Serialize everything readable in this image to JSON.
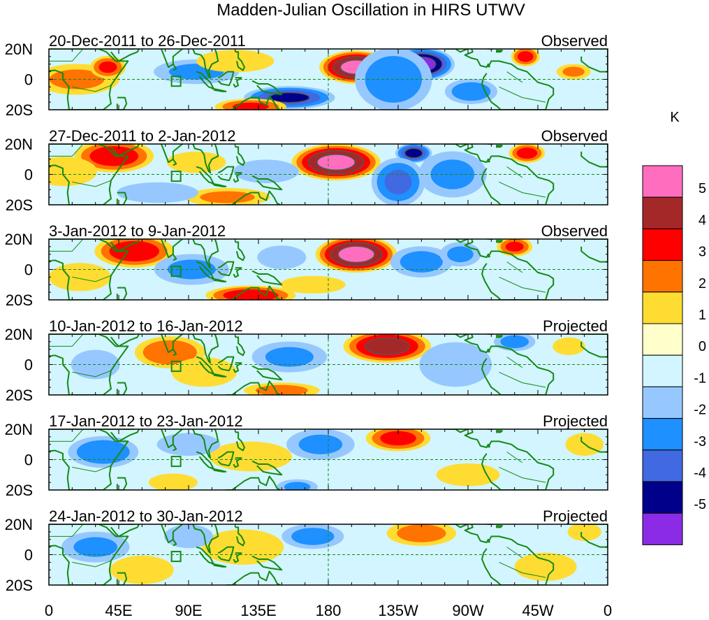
{
  "chart_data": {
    "type": "heatmap",
    "title": "Madden-Julian Oscillation in HIRS UTWV",
    "units": "K",
    "x_tick_labels": [
      "0",
      "45E",
      "90E",
      "135E",
      "180",
      "135W",
      "90W",
      "45W",
      "0"
    ],
    "x_ticks_deg": [
      0,
      45,
      90,
      135,
      180,
      225,
      270,
      315,
      360
    ],
    "y_tick_labels": [
      "20N",
      "0",
      "20S"
    ],
    "y_ticks_deg": [
      20,
      0,
      -20
    ],
    "xlim": [
      0,
      360
    ],
    "ylim": [
      -20,
      20
    ],
    "colorbar": {
      "levels": [
        "5",
        "4",
        "3",
        "2",
        "1",
        "0",
        "-1",
        "-2",
        "-3",
        "-4",
        "-5"
      ],
      "colors": [
        "#8B2BE6",
        "#00008B",
        "#4169E1",
        "#1E90FF",
        "#96C8FF",
        "#D2F5FF",
        "#FFFFCC",
        "#FFDC32",
        "#FF7300",
        "#FF0000",
        "#A52828",
        "#FF6EBE"
      ]
    },
    "panels": [
      {
        "period": "20-Dec-2011 to 26-Dec-2011",
        "status": "Observed",
        "features": [
          {
            "lon": 198,
            "lat": 8,
            "anomaly": 5.2,
            "wlon": 20,
            "wlat": 10
          },
          {
            "lon": 240,
            "lat": 10,
            "anomaly": -5.2,
            "wlon": 18,
            "wlat": 10
          },
          {
            "lon": 222,
            "lat": 0,
            "anomaly": -2.5,
            "wlon": 22,
            "wlat": 20
          },
          {
            "lon": 155,
            "lat": -12,
            "anomaly": -4.0,
            "wlon": 25,
            "wlat": 7
          },
          {
            "lon": 18,
            "lat": 0,
            "anomaly": 2.0,
            "wlon": 25,
            "wlat": 10
          },
          {
            "lon": 38,
            "lat": 8,
            "anomaly": 3.0,
            "wlon": 10,
            "wlat": 7
          },
          {
            "lon": 130,
            "lat": -18,
            "anomaly": 3.0,
            "wlon": 20,
            "wlat": 5
          },
          {
            "lon": 307,
            "lat": 15,
            "anomaly": 3.2,
            "wlon": 8,
            "wlat": 6
          },
          {
            "lon": 95,
            "lat": 5,
            "anomaly": -2.0,
            "wlon": 25,
            "wlat": 8
          },
          {
            "lon": 338,
            "lat": 5,
            "anomaly": 2.0,
            "wlon": 10,
            "wlat": 5
          },
          {
            "lon": 272,
            "lat": -8,
            "anomaly": -2.5,
            "wlon": 15,
            "wlat": 8
          },
          {
            "lon": 120,
            "lat": 12,
            "anomaly": 1.2,
            "wlon": 25,
            "wlat": 8
          }
        ]
      },
      {
        "period": "27-Dec-2011 to 2-Jan-2012",
        "status": "Observed",
        "features": [
          {
            "lon": 185,
            "lat": 8,
            "anomaly": 5.2,
            "wlon": 24,
            "wlat": 11
          },
          {
            "lon": 42,
            "lat": 12,
            "anomaly": 3.5,
            "wlon": 22,
            "wlat": 10
          },
          {
            "lon": 10,
            "lat": 2,
            "anomaly": 1.5,
            "wlon": 20,
            "wlat": 10
          },
          {
            "lon": 235,
            "lat": 14,
            "anomaly": -4.2,
            "wlon": 10,
            "wlat": 6
          },
          {
            "lon": 225,
            "lat": -5,
            "anomaly": -3.0,
            "wlon": 15,
            "wlat": 15
          },
          {
            "lon": 260,
            "lat": 0,
            "anomaly": -2.0,
            "wlon": 20,
            "wlat": 15
          },
          {
            "lon": 308,
            "lat": 14,
            "anomaly": 3.3,
            "wlon": 10,
            "wlat": 6
          },
          {
            "lon": 115,
            "lat": -15,
            "anomaly": 2.0,
            "wlon": 25,
            "wlat": 6
          },
          {
            "lon": 70,
            "lat": -12,
            "anomaly": -1.5,
            "wlon": 25,
            "wlat": 7
          },
          {
            "lon": 140,
            "lat": 2,
            "anomaly": -1.5,
            "wlon": 20,
            "wlat": 8
          },
          {
            "lon": 95,
            "lat": 8,
            "anomaly": 1.0,
            "wlon": 20,
            "wlat": 8
          }
        ]
      },
      {
        "period": "3-Jan-2012 to 9-Jan-2012",
        "status": "Observed",
        "features": [
          {
            "lon": 198,
            "lat": 10,
            "anomaly": 5.3,
            "wlon": 22,
            "wlat": 11
          },
          {
            "lon": 55,
            "lat": 12,
            "anomaly": 3.6,
            "wlon": 22,
            "wlat": 10
          },
          {
            "lon": 130,
            "lat": -17,
            "anomaly": 3.5,
            "wlon": 25,
            "wlat": 6
          },
          {
            "lon": 300,
            "lat": 15,
            "anomaly": 3.0,
            "wlon": 10,
            "wlat": 6
          },
          {
            "lon": 92,
            "lat": 0,
            "anomaly": -2.0,
            "wlon": 22,
            "wlat": 10
          },
          {
            "lon": 240,
            "lat": 5,
            "anomaly": -2.2,
            "wlon": 18,
            "wlat": 10
          },
          {
            "lon": 265,
            "lat": 10,
            "anomaly": -2.0,
            "wlon": 12,
            "wlat": 8
          },
          {
            "lon": 150,
            "lat": 8,
            "anomaly": -1.5,
            "wlon": 15,
            "wlat": 8
          },
          {
            "lon": 20,
            "lat": -5,
            "anomaly": 1.2,
            "wlon": 20,
            "wlat": 10
          },
          {
            "lon": 170,
            "lat": -10,
            "anomaly": 1.5,
            "wlon": 20,
            "wlat": 6
          }
        ]
      },
      {
        "period": "10-Jan-2012 to 16-Jan-2012",
        "status": "Projected",
        "features": [
          {
            "lon": 218,
            "lat": 12,
            "anomaly": 4.3,
            "wlon": 24,
            "wlat": 10
          },
          {
            "lon": 78,
            "lat": 8,
            "anomaly": 2.7,
            "wlon": 20,
            "wlat": 10
          },
          {
            "lon": 150,
            "lat": -17,
            "anomaly": 2.2,
            "wlon": 22,
            "wlat": 5
          },
          {
            "lon": 100,
            "lat": -5,
            "anomaly": 1.5,
            "wlon": 20,
            "wlat": 10
          },
          {
            "lon": 155,
            "lat": 5,
            "anomaly": -2.0,
            "wlon": 22,
            "wlat": 10
          },
          {
            "lon": 262,
            "lat": 0,
            "anomaly": -1.6,
            "wlon": 22,
            "wlat": 15
          },
          {
            "lon": 300,
            "lat": 15,
            "anomaly": -2.2,
            "wlon": 12,
            "wlat": 6
          },
          {
            "lon": 30,
            "lat": 0,
            "anomaly": -1.5,
            "wlon": 15,
            "wlat": 10
          },
          {
            "lon": 335,
            "lat": 12,
            "anomaly": 1.5,
            "wlon": 10,
            "wlat": 6
          }
        ]
      },
      {
        "period": "17-Jan-2012 to 23-Jan-2012",
        "status": "Projected",
        "features": [
          {
            "lon": 225,
            "lat": 14,
            "anomaly": 3.2,
            "wlon": 18,
            "wlat": 8
          },
          {
            "lon": 35,
            "lat": 5,
            "anomaly": -2.6,
            "wlon": 20,
            "wlat": 10
          },
          {
            "lon": 175,
            "lat": 10,
            "anomaly": -2.0,
            "wlon": 20,
            "wlat": 10
          },
          {
            "lon": 130,
            "lat": 2,
            "anomaly": 1.6,
            "wlon": 25,
            "wlat": 10
          },
          {
            "lon": 80,
            "lat": -15,
            "anomaly": 1.5,
            "wlon": 15,
            "wlat": 6
          },
          {
            "lon": 270,
            "lat": -10,
            "anomaly": 1.3,
            "wlon": 20,
            "wlat": 8
          },
          {
            "lon": 345,
            "lat": 10,
            "anomaly": 1.3,
            "wlon": 12,
            "wlat": 8
          },
          {
            "lon": 90,
            "lat": 10,
            "anomaly": -1.3,
            "wlon": 20,
            "wlat": 8
          },
          {
            "lon": 160,
            "lat": -18,
            "anomaly": -2.0,
            "wlon": 12,
            "wlat": 5
          }
        ]
      },
      {
        "period": "24-Jan-2012 to 30-Jan-2012",
        "status": "Projected",
        "features": [
          {
            "lon": 240,
            "lat": 14,
            "anomaly": 2.3,
            "wlon": 20,
            "wlat": 8
          },
          {
            "lon": 125,
            "lat": 5,
            "anomaly": 1.5,
            "wlon": 25,
            "wlat": 12
          },
          {
            "lon": 60,
            "lat": -10,
            "anomaly": 1.3,
            "wlon": 20,
            "wlat": 10
          },
          {
            "lon": 30,
            "lat": 5,
            "anomaly": -2.0,
            "wlon": 20,
            "wlat": 10
          },
          {
            "lon": 170,
            "lat": 12,
            "anomaly": -2.2,
            "wlon": 18,
            "wlat": 8
          },
          {
            "lon": 90,
            "lat": 12,
            "anomaly": -1.5,
            "wlon": 15,
            "wlat": 8
          },
          {
            "lon": 320,
            "lat": -8,
            "anomaly": 1.2,
            "wlon": 20,
            "wlat": 10
          },
          {
            "lon": 345,
            "lat": 15,
            "anomaly": 1.8,
            "wlon": 10,
            "wlat": 6
          }
        ]
      }
    ]
  }
}
